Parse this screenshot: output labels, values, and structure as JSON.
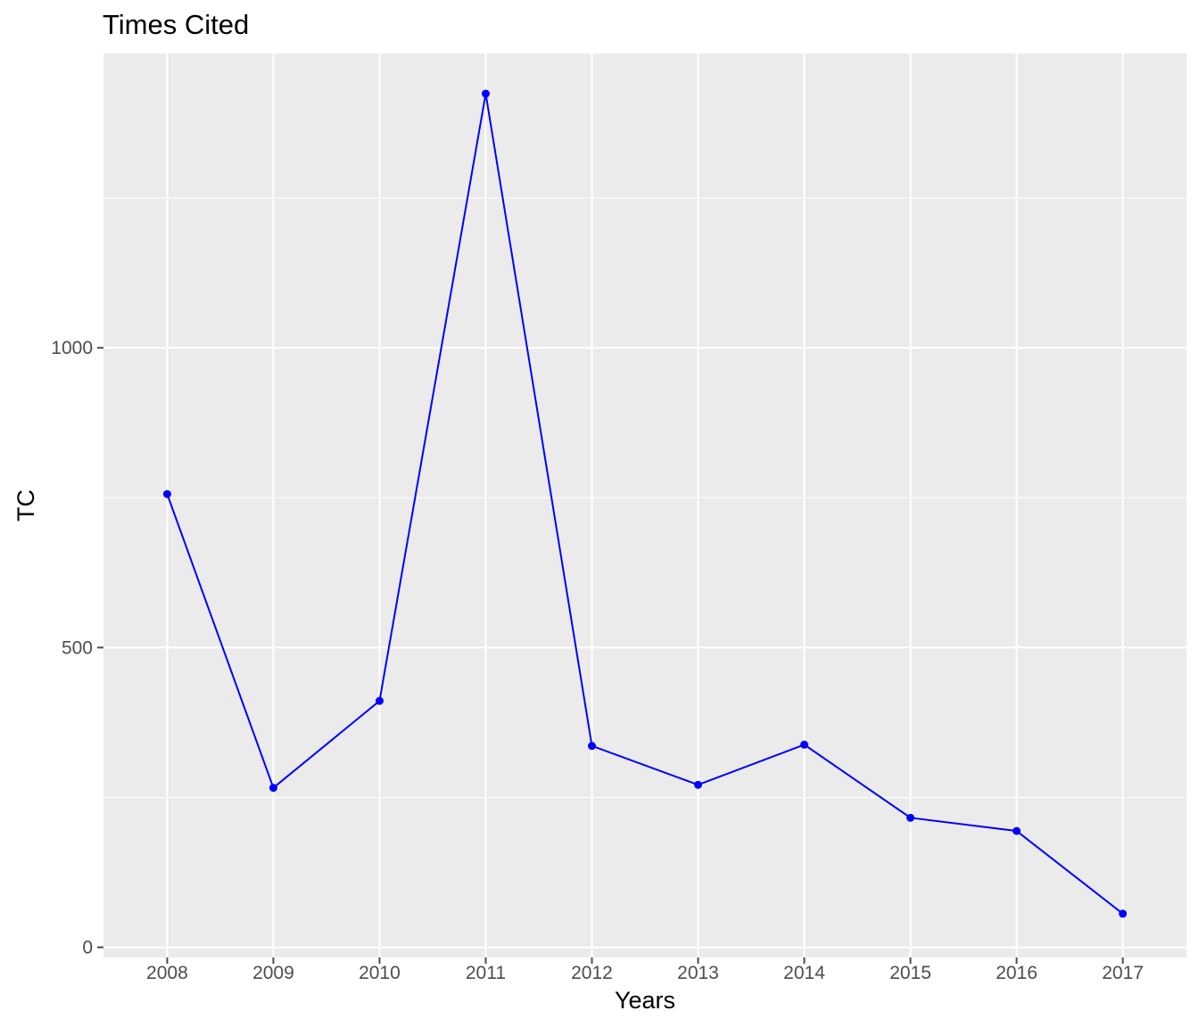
{
  "chart_data": {
    "type": "line",
    "title": "Times Cited",
    "xlabel": "Years",
    "ylabel": "TC",
    "x": [
      "2008",
      "2009",
      "2010",
      "2011",
      "2012",
      "2013",
      "2014",
      "2015",
      "2016",
      "2017"
    ],
    "series": [
      {
        "values": [
          756,
          266,
          411,
          1424,
          336,
          271,
          338,
          216,
          194,
          56
        ],
        "color": "#0000ff"
      }
    ],
    "y_ticks": [
      0,
      500,
      1000
    ],
    "ylim": [
      -17,
      1491
    ],
    "grid": true,
    "panel_background": "#ebebeb",
    "grid_color": "#ffffff",
    "tick_color": "#4d4d4d"
  }
}
